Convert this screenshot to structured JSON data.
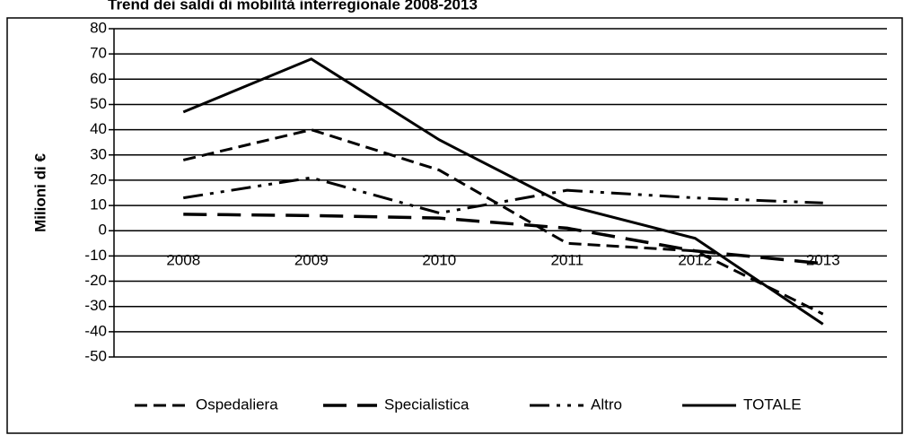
{
  "chart_data": {
    "type": "line",
    "title": "Trend dei saldi di mobilità interregionale 2008-2013",
    "y_label": "Milioni di €",
    "categories": [
      "2008",
      "2009",
      "2010",
      "2011",
      "2012",
      "2013"
    ],
    "series": [
      {
        "name": "Ospedaliera",
        "color": "#000000",
        "values": [
          28,
          40,
          24,
          -5,
          -8,
          -33
        ]
      },
      {
        "name": "Specialistica",
        "color": "#000000",
        "values": [
          6.5,
          6,
          5,
          1,
          -8,
          -13
        ]
      },
      {
        "name": "Altro",
        "color": "#000000",
        "values": [
          13,
          21,
          7,
          16,
          13,
          11
        ]
      },
      {
        "name": "TOTALE",
        "color": "#000000",
        "values": [
          47,
          68,
          36,
          10,
          -3,
          -37
        ]
      }
    ],
    "ylim": [
      -50,
      80
    ],
    "yticks": [
      -50,
      -40,
      -30,
      -20,
      -10,
      0,
      10,
      20,
      30,
      40,
      50,
      60,
      70,
      80
    ],
    "grid": true,
    "legend": "bottom"
  }
}
